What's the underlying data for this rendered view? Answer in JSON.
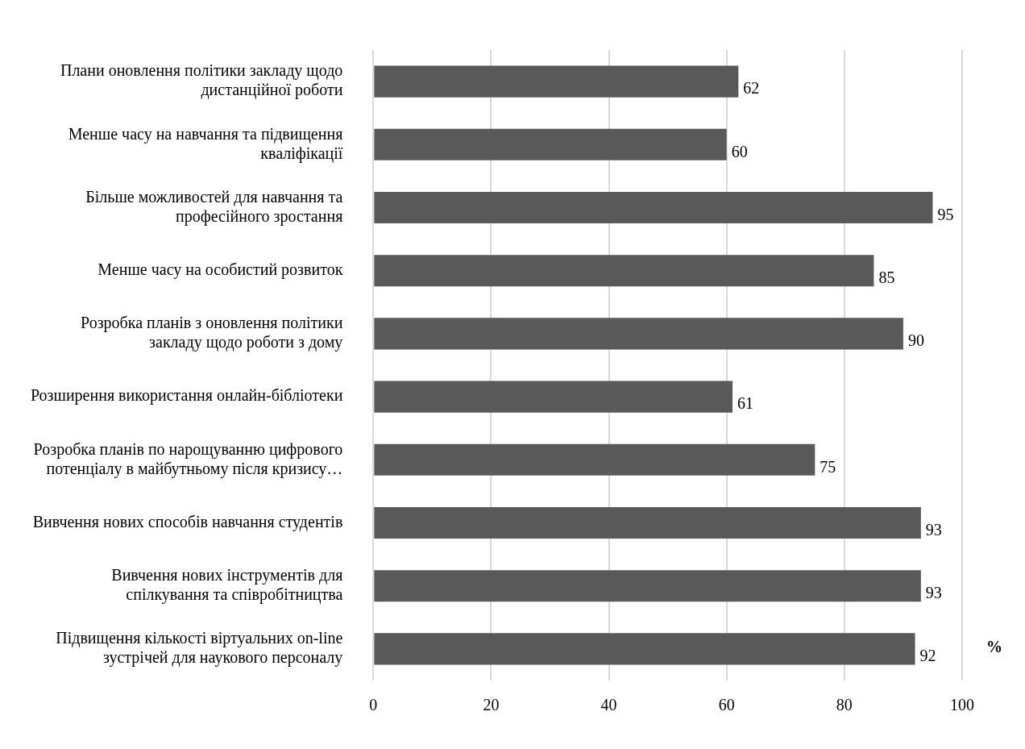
{
  "chart_data": {
    "type": "bar",
    "orientation": "horizontal",
    "xlabel": "%",
    "categories": [
      "Плани оновлення політики закладу щодо дистанційної роботи",
      "Менше часу на навчання та підвищення кваліфікації",
      "Більше можливостей для навчання та професійного зростання",
      "Менше часу на особистий розвиток",
      "Розробка планів з оновлення політики закладу щодо роботи з дому",
      "Розширення використання онлайн-бібліотеки",
      "Розробка планів по нарощуванню цифрового потенціалу в майбутньому після кризису…",
      "Вивчення нових способів навчання студентів",
      "Вивчення нових інструментів для спілкування та співробітництва",
      "Підвищення кількості віртуальних on-line зустрічей для наукового персоналу"
    ],
    "values": [
      62,
      60,
      95,
      85,
      90,
      61,
      75,
      93,
      93,
      92
    ],
    "color": "#595959",
    "xlim": [
      0,
      100
    ],
    "xticks": [
      0,
      20,
      40,
      60,
      80,
      100
    ],
    "grid": "x",
    "data_labels": true,
    "legend": false
  }
}
